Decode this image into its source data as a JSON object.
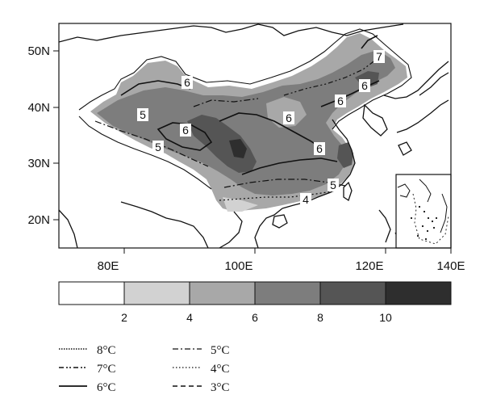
{
  "map": {
    "lat_ticks": [
      "50N",
      "40N",
      "30N",
      "20N"
    ],
    "lon_ticks": [
      "80E",
      "100E",
      "120E",
      "140E"
    ],
    "contour_labels": [
      "6",
      "5",
      "6",
      "5",
      "6",
      "6",
      "6",
      "7",
      "6",
      "5",
      "4"
    ]
  },
  "colorbar": {
    "labels": [
      "2",
      "4",
      "6",
      "8",
      "10"
    ],
    "colors": [
      "#ffffff",
      "#d2d2d2",
      "#a8a8a8",
      "#7d7d7d",
      "#555555",
      "#2e2e2e"
    ]
  },
  "legend": [
    {
      "label": "8°C",
      "style": "dotted-dense"
    },
    {
      "label": "5°C",
      "style": "dash-dot"
    },
    {
      "label": "7°C",
      "style": "dash-dot-dot"
    },
    {
      "label": "4°C",
      "style": "dotted"
    },
    {
      "label": "6°C",
      "style": "solid"
    },
    {
      "label": "3°C",
      "style": "dashed"
    }
  ]
}
